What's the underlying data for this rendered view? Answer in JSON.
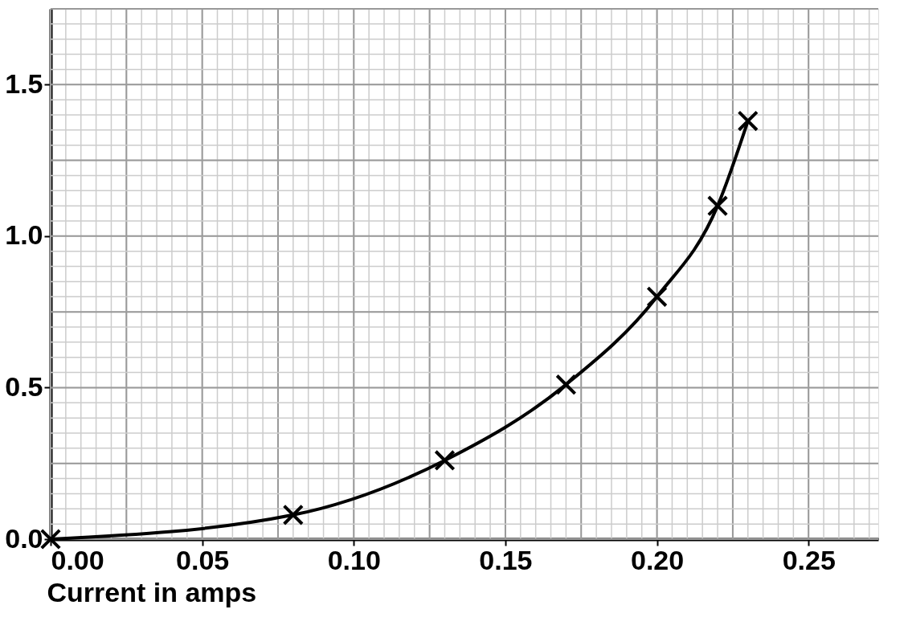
{
  "chart_data": {
    "type": "line",
    "xlabel": "Current in amps",
    "x": [
      0,
      0.08,
      0.13,
      0.17,
      0.2,
      0.22,
      0.23
    ],
    "series": [
      {
        "color": "#000000",
        "values": [
          0,
          0.08,
          0.26,
          0.51,
          0.8,
          1.1,
          1.38
        ]
      }
    ],
    "xlim": [
      0,
      0.273
    ],
    "ylim": [
      0,
      1.75
    ],
    "xticks": [
      {
        "value": 0,
        "label": "0.00"
      },
      0.05,
      {
        "value": 0.1,
        "label": "0.10"
      },
      0.15,
      {
        "value": 0.2,
        "label": "0.20"
      },
      0.25
    ],
    "yticks": [
      {
        "value": 0,
        "label": "0.0"
      },
      0.5,
      {
        "value": 1,
        "label": "1.0"
      },
      1.5
    ],
    "grid": true,
    "marker": "cross",
    "line_style": "solid"
  }
}
